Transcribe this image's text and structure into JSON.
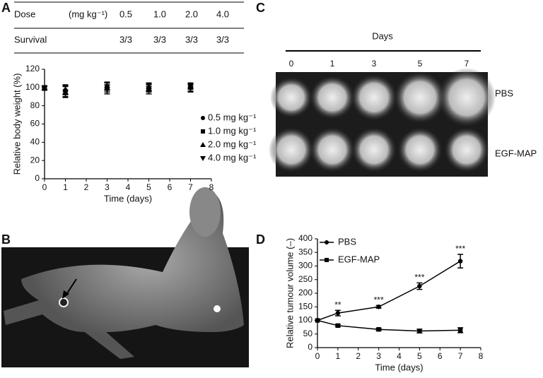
{
  "panels": [
    "A",
    "B",
    "C",
    "D"
  ],
  "table": {
    "dose": {
      "label": "Dose",
      "unit": "(mg kg⁻¹)",
      "cells": [
        "0.5",
        "1.0",
        "2.0",
        "4.0"
      ]
    },
    "survival": {
      "label": "Survival",
      "cells": [
        "3/3",
        "3/3",
        "3/3",
        "3/3"
      ]
    }
  },
  "images": {
    "title": "Days",
    "days": [
      "0",
      "1",
      "3",
      "5",
      "7"
    ],
    "rows": [
      "PBS",
      "EGF-MAP"
    ]
  },
  "chart_data": [
    {
      "type": "scatter",
      "x_label": "Time (days)",
      "y_label": "Relative body weight (%)",
      "xlim": [
        0,
        8
      ],
      "xticks": [
        0,
        1,
        2,
        3,
        4,
        5,
        6,
        7,
        8
      ],
      "ylim": [
        0,
        120
      ],
      "yticks": [
        0,
        20,
        40,
        60,
        80,
        100,
        120
      ],
      "x": [
        0,
        1,
        3,
        5,
        7
      ],
      "series": [
        {
          "name": "0.5 mg kg⁻¹",
          "marker": "circle",
          "color": "#000",
          "values": [
            100,
            97,
            101,
            100,
            101
          ],
          "errors": [
            2,
            5,
            4,
            4,
            3
          ]
        },
        {
          "name": "1.0 mg kg⁻¹",
          "marker": "square",
          "color": "#000",
          "values": [
            100,
            96,
            100,
            99,
            100
          ],
          "errors": [
            2,
            6,
            5,
            4,
            4
          ]
        },
        {
          "name": "2.0 mg kg⁻¹",
          "marker": "triangle-up",
          "color": "#000",
          "values": [
            100,
            98,
            102,
            101,
            102
          ],
          "errors": [
            2,
            5,
            4,
            4,
            3
          ]
        },
        {
          "name": "4.0 mg kg⁻¹",
          "marker": "triangle-down",
          "color": "#000",
          "values": [
            99,
            95,
            98,
            97,
            99
          ],
          "errors": [
            2,
            6,
            5,
            4,
            4
          ]
        }
      ]
    },
    {
      "type": "line",
      "x_label": "Time (days)",
      "y_label": "Relative tumour volume (–)",
      "xlim": [
        0,
        8
      ],
      "xticks": [
        0,
        1,
        2,
        3,
        4,
        5,
        6,
        7,
        8
      ],
      "ylim": [
        0,
        400
      ],
      "yticks": [
        0,
        50,
        100,
        150,
        200,
        250,
        300,
        350,
        400
      ],
      "x": [
        0,
        1,
        3,
        5,
        7
      ],
      "series": [
        {
          "name": "PBS",
          "marker": "circle",
          "color": "#000",
          "values": [
            100,
            127,
            150,
            226,
            318
          ],
          "errors": [
            0,
            10,
            5,
            12,
            25
          ]
        },
        {
          "name": "EGF-MAP",
          "marker": "square",
          "color": "#000",
          "values": [
            100,
            81,
            67,
            61,
            64
          ],
          "errors": [
            0,
            4,
            4,
            7,
            9
          ]
        }
      ],
      "annotations": [
        {
          "x": 1,
          "text": "**"
        },
        {
          "x": 3,
          "text": "***"
        },
        {
          "x": 5,
          "text": "***"
        },
        {
          "x": 7,
          "text": "***"
        }
      ]
    }
  ]
}
